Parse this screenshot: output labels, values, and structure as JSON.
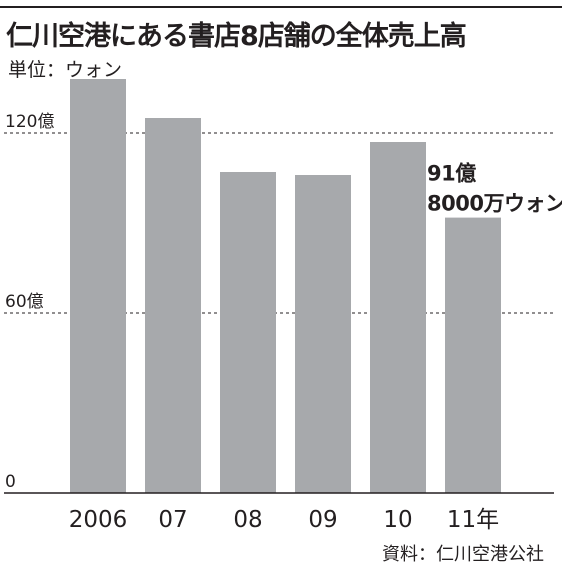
{
  "chart_data": {
    "type": "bar",
    "title": "仁川空港にある書店8店舗の全体売上高",
    "unit_label": "単位：ウォン",
    "categories": [
      "2006",
      "07",
      "08",
      "09",
      "10",
      "11年"
    ],
    "values": [
      138,
      125,
      107,
      106,
      117,
      91.8
    ],
    "ylim": [
      0,
      150
    ],
    "yticks": [
      {
        "value": 0,
        "label": "0"
      },
      {
        "value": 60,
        "label": "60億"
      },
      {
        "value": 120,
        "label": "120億"
      }
    ],
    "grid": "dashed at 60 and 120",
    "annotation": {
      "category": "11年",
      "lines": [
        "91億",
        "8000万ウォン"
      ]
    },
    "source": "資料：仁川空港公社",
    "colors": {
      "bar": "#a7a9ac",
      "text": "#231f20",
      "grid": "#231f20"
    }
  }
}
